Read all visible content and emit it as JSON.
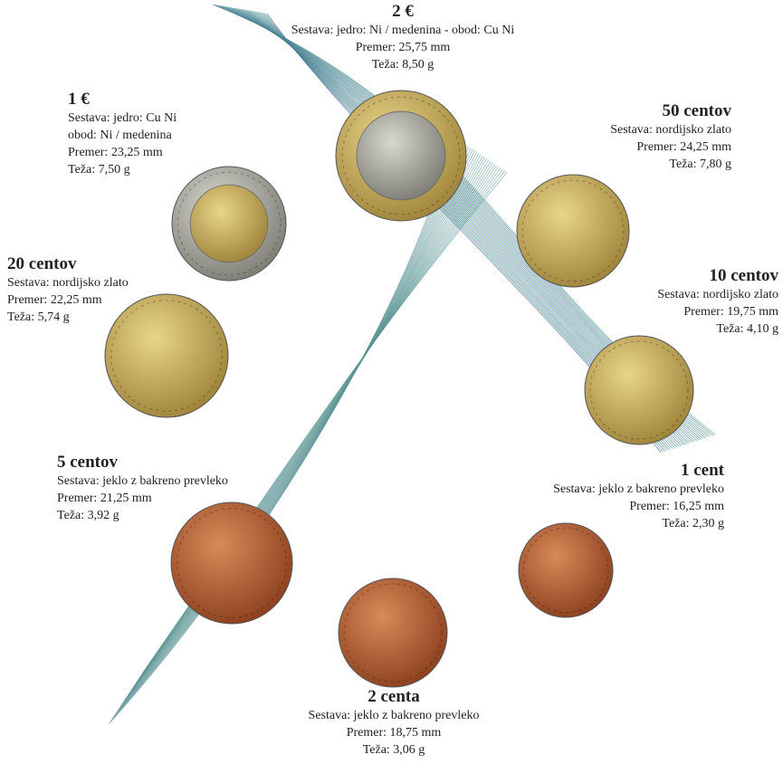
{
  "coins": [
    {
      "title": "2 €",
      "lines": [
        "Sestava: jedro: Ni / medenina - obod: Cu Ni",
        "Premer: 25,75 mm",
        "Teža: 8,50 g"
      ]
    },
    {
      "title": "1 €",
      "lines": [
        "Sestava: jedro: Cu Ni",
        "obod: Ni / medenina",
        "Premer: 23,25 mm",
        "Teža: 7,50 g"
      ]
    },
    {
      "title": "50 centov",
      "lines": [
        "Sestava: nordijsko zlato",
        "Premer: 24,25 mm",
        "Teža: 7,80 g"
      ]
    },
    {
      "title": "10 centov",
      "lines": [
        "Sestava: nordijsko zlato",
        "Premer: 19,75 mm",
        "Teža: 4,10 g"
      ]
    },
    {
      "title": "20 centov",
      "lines": [
        "Sestava: nordijsko zlato",
        "Premer: 22,25 mm",
        "Teža: 5,74 g"
      ]
    },
    {
      "title": "5 centov",
      "lines": [
        "Sestava: jeklo z bakreno prevleko",
        "Premer: 21,25 mm",
        "Teža: 3,92 g"
      ]
    },
    {
      "title": "1 cent",
      "lines": [
        "Sestava: jeklo z bakreno prevleko",
        "Premer: 16,25 mm",
        "Teža: 2,30 g"
      ]
    },
    {
      "title": "2 centa",
      "lines": [
        "Sestava: jeklo z bakreno prevleko",
        "Premer: 18,75 mm",
        "Teža: 3,06 g"
      ]
    }
  ]
}
